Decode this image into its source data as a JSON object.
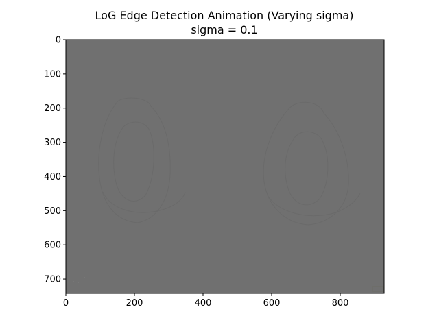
{
  "chart_data": {
    "type": "heatmap",
    "title": "LoG Edge Detection Animation (Varying sigma)",
    "subtitle": "sigma = 0.1",
    "xlabel": "",
    "ylabel": "",
    "xlim": [
      0,
      928
    ],
    "ylim": [
      742,
      0
    ],
    "xticks": [
      0,
      200,
      400,
      600,
      800
    ],
    "yticks": [
      0,
      100,
      200,
      300,
      400,
      500,
      600,
      700
    ],
    "grid": false,
    "image_fill": "#707070",
    "edge_color": "#666666",
    "frame_color": "#000000"
  }
}
